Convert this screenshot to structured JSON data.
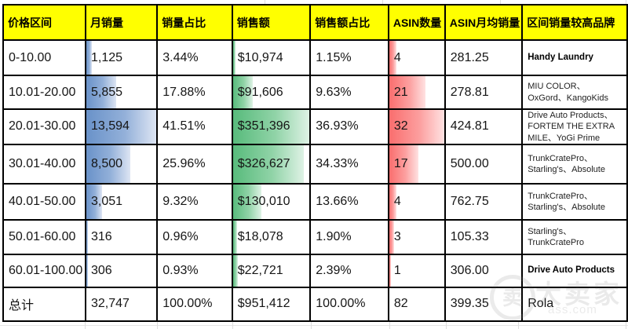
{
  "table": {
    "headers": [
      "价格区间",
      "月销量",
      "销量占比",
      "销售额",
      "销售额占比",
      "ASIN数量",
      "ASIN月均销量",
      "区间销量较高品牌"
    ],
    "rows": [
      {
        "price_range": "0-10.00",
        "monthly_sales": "1,125",
        "sales_share": "3.44%",
        "revenue": "$10,974",
        "revenue_share": "1.15%",
        "asin_count": "4",
        "asin_avg": "281.25",
        "brands": "Handy Laundry",
        "bars": {
          "sales": 8.3,
          "revenue": 3.1,
          "asin": 12.5
        }
      },
      {
        "price_range": "10.01-20.00",
        "monthly_sales": "5,855",
        "sales_share": "17.88%",
        "revenue": "$91,606",
        "revenue_share": "9.63%",
        "asin_count": "21",
        "asin_avg": "278.81",
        "brands": "MIU COLOR、OxGord、KangoKids",
        "bars": {
          "sales": 43.1,
          "revenue": 26.1,
          "asin": 65.6
        }
      },
      {
        "price_range": "20.01-30.00",
        "monthly_sales": "13,594",
        "sales_share": "41.51%",
        "revenue": "$351,396",
        "revenue_share": "36.93%",
        "asin_count": "32",
        "asin_avg": "424.81",
        "brands": "Drive Auto Products、FORTEM THE EXTRA MILE、YoGi Prime",
        "bars": {
          "sales": 100,
          "revenue": 100,
          "asin": 100
        }
      },
      {
        "price_range": "30.01-40.00",
        "monthly_sales": "8,500",
        "sales_share": "25.96%",
        "revenue": "$326,627",
        "revenue_share": "34.33%",
        "asin_count": "17",
        "asin_avg": "500.00",
        "brands": "TrunkCratePro、Starling's、Absolute",
        "bars": {
          "sales": 62.5,
          "revenue": 93.0,
          "asin": 53.1
        }
      },
      {
        "price_range": "40.01-50.00",
        "monthly_sales": "3,051",
        "sales_share": "9.32%",
        "revenue": "$130,010",
        "revenue_share": "13.66%",
        "asin_count": "4",
        "asin_avg": "762.75",
        "brands": "TrunkCratePro、Starling's、Absolute",
        "bars": {
          "sales": 22.4,
          "revenue": 37.0,
          "asin": 12.5
        }
      },
      {
        "price_range": "50.01-60.00",
        "monthly_sales": "316",
        "sales_share": "0.96%",
        "revenue": "$18,078",
        "revenue_share": "1.90%",
        "asin_count": "3",
        "asin_avg": "105.33",
        "brands": "Starling's、TrunkCratePro",
        "bars": {
          "sales": 2.3,
          "revenue": 5.1,
          "asin": 9.4
        }
      },
      {
        "price_range": "60.01-100.00",
        "monthly_sales": "306",
        "sales_share": "0.93%",
        "revenue": "$22,721",
        "revenue_share": "2.39%",
        "asin_count": "1",
        "asin_avg": "306.00",
        "brands": "Drive Auto Products",
        "bars": {
          "sales": 2.3,
          "revenue": 6.5,
          "asin": 3.1
        }
      }
    ],
    "total": {
      "price_range": "总计",
      "monthly_sales": "32,747",
      "sales_share": "100.00%",
      "revenue": "$951,412",
      "revenue_share": "100.00%",
      "asin_count": "82",
      "asin_avg": "399.35",
      "brands": "Rola"
    }
  },
  "chart_data": {
    "type": "table",
    "title": "价格区间销量分布",
    "columns": [
      "价格区间",
      "月销量",
      "销量占比",
      "销售额",
      "销售额占比",
      "ASIN数量",
      "ASIN月均销量",
      "区间销量较高品牌"
    ],
    "rows": [
      [
        "0-10.00",
        1125,
        "3.44%",
        10974,
        "1.15%",
        4,
        281.25,
        "Handy Laundry"
      ],
      [
        "10.01-20.00",
        5855,
        "17.88%",
        91606,
        "9.63%",
        21,
        278.81,
        "MIU COLOR、OxGord、KangoKids"
      ],
      [
        "20.01-30.00",
        13594,
        "41.51%",
        351396,
        "36.93%",
        32,
        424.81,
        "Drive Auto Products、FORTEM THE EXTRA MILE、YoGi Prime"
      ],
      [
        "30.01-40.00",
        8500,
        "25.96%",
        326627,
        "34.33%",
        17,
        500.0,
        "TrunkCratePro、Starling's、Absolute"
      ],
      [
        "40.01-50.00",
        3051,
        "9.32%",
        130010,
        "13.66%",
        4,
        762.75,
        "TrunkCratePro、Starling's、Absolute"
      ],
      [
        "50.01-60.00",
        316,
        "0.96%",
        18078,
        "1.90%",
        3,
        105.33,
        "Starling's、TrunkCratePro"
      ],
      [
        "60.01-100.00",
        306,
        "0.93%",
        22721,
        "2.39%",
        1,
        306.0,
        "Drive Auto Products"
      ],
      [
        "总计",
        32747,
        "100.00%",
        951412,
        "100.00%",
        82,
        399.35,
        "Rola"
      ]
    ],
    "data_bars": [
      {
        "column": "月销量",
        "color": "#638EC6",
        "max": 13594
      },
      {
        "column": "销售额",
        "color": "#63C384",
        "max": 351396
      },
      {
        "column": "ASIN数量",
        "color": "#FA6E6E",
        "max": 32
      }
    ]
  },
  "colors": {
    "header_bg": "#FFFF00",
    "header_text": "#000000",
    "bar_blue": "#638EC6",
    "bar_green": "#63C384",
    "bar_red": "#FA6E6E",
    "border": "#000000"
  },
  "watermark": {
    "logo_glyph": "卖",
    "brand_text": "大卖家",
    "domain_text": "ass.com"
  }
}
